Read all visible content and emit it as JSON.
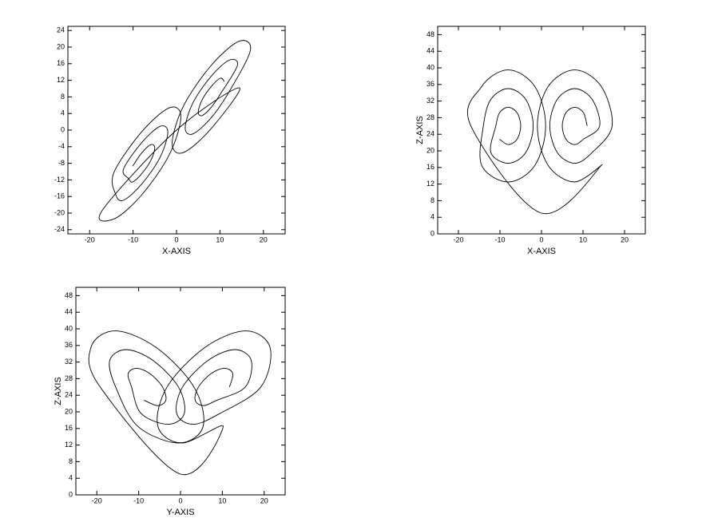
{
  "chart_data": [
    {
      "type": "line",
      "xlabel": "X-AXIS",
      "color": "#000000",
      "x": [
        11,
        10.1,
        8,
        5.9,
        5,
        5.9,
        8,
        10.1,
        14,
        12.2,
        8,
        3.8,
        2,
        3.8,
        8,
        12.2,
        17,
        14.4,
        8,
        1.6,
        -1,
        1.6,
        8,
        14.4,
        0,
        -17,
        -14.4,
        -8,
        -1.6,
        1,
        -1.6,
        -8,
        -14.4,
        -14,
        -12.2,
        -8,
        -3.8,
        -2,
        -3.8,
        -8,
        -12.2,
        -11,
        -10.1,
        -8,
        -5.9,
        -5,
        -5.9,
        -8,
        -10.1
      ],
      "values": [
        11.7,
        12.5,
        10.5,
        7.3,
        4.3,
        3.5,
        5.5,
        8.7,
        15.5,
        16.9,
        13,
        6.6,
        0.5,
        -0.9,
        3,
        9.4,
        19.2,
        21.4,
        15.6,
        5.8,
        -3.2,
        -5.4,
        0.4,
        10.2,
        0,
        -19.2,
        -21.4,
        -15.6,
        -5.8,
        3.2,
        5.4,
        -0.4,
        -10.2,
        -15.5,
        -16.9,
        -13,
        -6.6,
        -0.5,
        0.9,
        -3,
        -9.4,
        -11.7,
        -12.5,
        -10.5,
        -7.3,
        -4.3,
        -3.5,
        -5.5,
        -8.7
      ],
      "xlim": [
        -25,
        25
      ],
      "ylim": [
        -25,
        25
      ],
      "xticks": [
        -20,
        -10,
        0,
        10,
        20
      ],
      "yticks": [
        -24,
        -20,
        -16,
        -12,
        -8,
        -4,
        0,
        4,
        8,
        12,
        16,
        20,
        24
      ]
    },
    {
      "type": "line",
      "xlabel": "X-AXIS",
      "ylabel": "Z-AXIS",
      "color": "#000000",
      "x": [
        11,
        10.1,
        8,
        5.9,
        5,
        5.9,
        8,
        10.1,
        14,
        12.2,
        8,
        3.8,
        2,
        3.8,
        8,
        12.2,
        17,
        14.4,
        8,
        1.6,
        -1,
        1.6,
        8,
        14.4,
        0,
        -17,
        -14.4,
        -8,
        -1.6,
        1,
        -1.6,
        -8,
        -14.4,
        -14,
        -12.2,
        -8,
        -3.8,
        -2,
        -3.8,
        -8,
        -12.2,
        -11,
        -10.1,
        -8,
        -5.9,
        -5,
        -5.9,
        -8,
        -10.1
      ],
      "values": [
        26,
        29.2,
        30.5,
        29.2,
        26,
        22.8,
        21.5,
        22.8,
        26,
        32.4,
        35,
        32.4,
        26,
        19.6,
        17,
        19.6,
        26,
        35.5,
        39.5,
        35.5,
        26,
        16.5,
        12.5,
        16.5,
        5,
        26,
        35.5,
        39.5,
        35.5,
        26,
        16.5,
        12.5,
        16.5,
        26,
        32.4,
        35,
        32.4,
        26,
        19.6,
        17,
        19.6,
        26,
        29.2,
        30.5,
        29.2,
        26,
        22.8,
        21.5,
        22.8
      ],
      "xlim": [
        -25,
        25
      ],
      "ylim": [
        0,
        50
      ],
      "xticks": [
        -20,
        -10,
        0,
        10,
        20
      ],
      "yticks": [
        0,
        4,
        8,
        12,
        16,
        20,
        24,
        28,
        32,
        36,
        40,
        44,
        48
      ]
    },
    {
      "type": "line",
      "xlabel": "Y-AXIS",
      "ylabel": "Z-AXIS",
      "color": "#000000",
      "x": [
        11.7,
        12.5,
        10.5,
        7.3,
        4.3,
        3.5,
        5.5,
        8.7,
        15.5,
        16.9,
        13,
        6.6,
        0.5,
        -0.9,
        3,
        9.4,
        19.2,
        21.4,
        15.6,
        5.8,
        -3.2,
        -5.4,
        0.4,
        10.2,
        0,
        -19.2,
        -21.4,
        -15.6,
        -5.8,
        3.2,
        5.4,
        -0.4,
        -10.2,
        -15.5,
        -16.9,
        -13,
        -6.6,
        -0.5,
        0.9,
        -3,
        -9.4,
        -11.7,
        -12.5,
        -10.5,
        -7.3,
        -4.3,
        -3.5,
        -5.5,
        -8.7
      ],
      "values": [
        26,
        29.2,
        30.5,
        29.2,
        26,
        22.8,
        21.5,
        22.8,
        26,
        32.4,
        35,
        32.4,
        26,
        19.6,
        17,
        19.6,
        26,
        35.5,
        39.5,
        35.5,
        26,
        16.5,
        12.5,
        16.5,
        5,
        26,
        35.5,
        39.5,
        35.5,
        26,
        16.5,
        12.5,
        16.5,
        26,
        32.4,
        35,
        32.4,
        26,
        19.6,
        17,
        19.6,
        26,
        29.2,
        30.5,
        29.2,
        26,
        22.8,
        21.5,
        22.8
      ],
      "xlim": [
        -25,
        25
      ],
      "ylim": [
        0,
        50
      ],
      "xticks": [
        -20,
        -10,
        0,
        10,
        20
      ],
      "yticks": [
        0,
        4,
        8,
        12,
        16,
        20,
        24,
        28,
        32,
        36,
        40,
        44,
        48
      ]
    }
  ]
}
